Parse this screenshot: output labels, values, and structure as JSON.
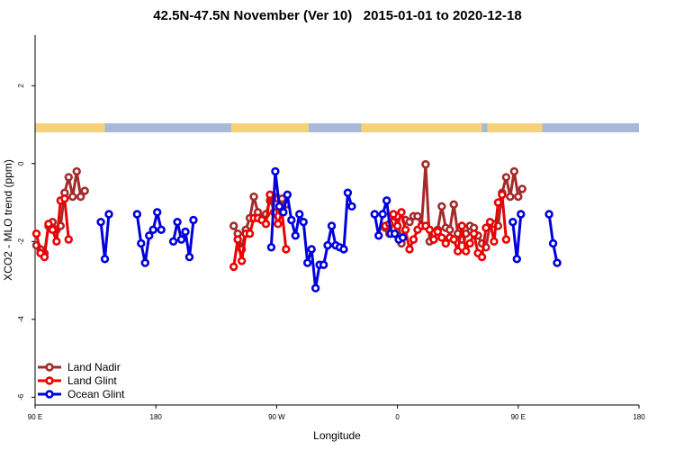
{
  "chart_data": {
    "type": "line",
    "title": "42.5N-47.5N November (Ver 10)   2015-01-01 to 2020-12-18",
    "xlabel": "Longitude",
    "ylabel": "XCO2 - MLO trend (ppm)",
    "xlim": [
      90,
      540
    ],
    "ylim": [
      -6.2,
      3.3
    ],
    "xticks": [
      {
        "value": 90,
        "label": "90 E"
      },
      {
        "value": 180,
        "label": "180"
      },
      {
        "value": 270,
        "label": "90 W"
      },
      {
        "value": 360,
        "label": "0"
      },
      {
        "value": 450,
        "label": "90 E"
      },
      {
        "value": 540,
        "label": "180"
      }
    ],
    "yticks": [
      2,
      0,
      -2,
      -4,
      -6
    ],
    "legend_position": "bottom-left",
    "land_mask_colors": {
      "land": "#f5d27a",
      "ocean": "#a6b9d8"
    },
    "series": [
      {
        "name": "Land Nadir",
        "color": "#a52a2a",
        "segments": [
          [
            [
              91,
              -2.1
            ],
            [
              94,
              -2.2
            ],
            [
              97,
              -2.3
            ],
            [
              100,
              -1.6
            ],
            [
              103,
              -1.5
            ],
            [
              106,
              -1.7
            ],
            [
              109,
              -1.6
            ],
            [
              112,
              -0.75
            ],
            [
              115,
              -0.35
            ],
            [
              118,
              -0.85
            ],
            [
              121,
              -0.2
            ],
            [
              124,
              -0.85
            ],
            [
              127,
              -0.7
            ]
          ],
          [
            [
              238,
              -1.6
            ],
            [
              241,
              -1.8
            ],
            [
              244,
              -2.2
            ],
            [
              247,
              -1.7
            ],
            [
              250,
              -1.4
            ],
            [
              253,
              -0.85
            ],
            [
              256,
              -1.25
            ],
            [
              259,
              -1.4
            ],
            [
              262,
              -1.3
            ],
            [
              265,
              -0.95
            ],
            [
              268,
              -0.85
            ],
            [
              271,
              -0.9
            ],
            [
              274,
              -0.9
            ],
            [
              277,
              -1.05
            ]
          ],
          [
            [
              351,
              -1.65
            ],
            [
              354,
              -1.8
            ],
            [
              357,
              -1.5
            ],
            [
              360,
              -1.35
            ],
            [
              363,
              -2.05
            ],
            [
              366,
              -1.45
            ],
            [
              369,
              -1.5
            ],
            [
              372,
              -1.35
            ],
            [
              375,
              -1.35
            ],
            [
              378,
              -1.6
            ],
            [
              381,
              -0.02
            ],
            [
              384,
              -2.0
            ],
            [
              387,
              -1.95
            ],
            [
              390,
              -1.7
            ],
            [
              393,
              -1.1
            ],
            [
              396,
              -1.65
            ],
            [
              399,
              -1.7
            ],
            [
              402,
              -1.05
            ],
            [
              405,
              -1.8
            ],
            [
              408,
              -1.95
            ],
            [
              411,
              -1.8
            ],
            [
              414,
              -1.6
            ],
            [
              417,
              -1.65
            ],
            [
              420,
              -1.85
            ],
            [
              423,
              -2.05
            ],
            [
              426,
              -2.15
            ],
            [
              429,
              -1.55
            ],
            [
              432,
              -1.55
            ],
            [
              435,
              -1.6
            ],
            [
              438,
              -0.75
            ],
            [
              441,
              -0.35
            ],
            [
              444,
              -0.85
            ],
            [
              447,
              -0.2
            ],
            [
              450,
              -0.85
            ],
            [
              453,
              -0.65
            ]
          ]
        ]
      },
      {
        "name": "Land Glint",
        "color": "#ee0000",
        "segments": [
          [
            [
              91,
              -1.8
            ],
            [
              94,
              -2.3
            ],
            [
              97,
              -2.4
            ],
            [
              100,
              -1.55
            ],
            [
              103,
              -1.7
            ],
            [
              106,
              -2.0
            ],
            [
              109,
              -0.95
            ],
            [
              112,
              -0.9
            ],
            [
              115,
              -1.95
            ]
          ],
          [
            [
              238,
              -2.65
            ],
            [
              241,
              -1.95
            ],
            [
              244,
              -2.5
            ],
            [
              247,
              -1.8
            ],
            [
              250,
              -1.8
            ],
            [
              253,
              -1.4
            ],
            [
              256,
              -1.4
            ],
            [
              259,
              -1.45
            ],
            [
              262,
              -1.55
            ],
            [
              265,
              -0.8
            ],
            [
              268,
              -1.25
            ],
            [
              271,
              -1.55
            ],
            [
              274,
              -1.25
            ],
            [
              277,
              -2.2
            ]
          ],
          [
            [
              351,
              -1.6
            ],
            [
              354,
              -1.55
            ],
            [
              357,
              -1.3
            ],
            [
              360,
              -1.6
            ],
            [
              363,
              -1.25
            ],
            [
              366,
              -1.7
            ],
            [
              369,
              -2.2
            ],
            [
              372,
              -1.95
            ],
            [
              375,
              -1.7
            ],
            [
              378,
              -1.6
            ],
            [
              381,
              -1.6
            ],
            [
              384,
              -1.7
            ],
            [
              387,
              -1.95
            ],
            [
              390,
              -1.75
            ],
            [
              393,
              -1.9
            ],
            [
              396,
              -2.05
            ],
            [
              399,
              -1.9
            ],
            [
              402,
              -1.95
            ],
            [
              405,
              -2.25
            ],
            [
              408,
              -1.6
            ],
            [
              411,
              -2.25
            ],
            [
              414,
              -2.05
            ],
            [
              417,
              -1.8
            ],
            [
              420,
              -2.3
            ],
            [
              423,
              -2.4
            ],
            [
              426,
              -1.65
            ],
            [
              429,
              -1.5
            ],
            [
              432,
              -2.0
            ],
            [
              435,
              -1.0
            ],
            [
              438,
              -0.8
            ],
            [
              441,
              -1.95
            ]
          ]
        ]
      },
      {
        "name": "Ocean Glint",
        "color": "#0000dd",
        "segments": [
          [
            [
              139,
              -1.5
            ],
            [
              142,
              -2.45
            ],
            [
              145,
              -1.3
            ]
          ],
          [
            [
              166,
              -1.3
            ],
            [
              169,
              -2.05
            ],
            [
              172,
              -2.55
            ],
            [
              175,
              -1.85
            ],
            [
              178,
              -1.7
            ],
            [
              181,
              -1.25
            ],
            [
              184,
              -1.7
            ]
          ],
          [
            [
              193,
              -2.0
            ],
            [
              196,
              -1.5
            ],
            [
              199,
              -1.95
            ],
            [
              202,
              -1.75
            ],
            [
              205,
              -2.4
            ],
            [
              208,
              -1.45
            ]
          ],
          [
            [
              266,
              -2.15
            ],
            [
              269,
              -0.2
            ],
            [
              272,
              -1.1
            ],
            [
              275,
              -1.25
            ],
            [
              278,
              -0.8
            ],
            [
              281,
              -1.45
            ],
            [
              284,
              -1.85
            ],
            [
              287,
              -1.3
            ],
            [
              290,
              -1.5
            ],
            [
              293,
              -2.55
            ],
            [
              296,
              -2.2
            ],
            [
              299,
              -3.2
            ],
            [
              302,
              -2.6
            ],
            [
              305,
              -2.6
            ],
            [
              308,
              -2.1
            ],
            [
              311,
              -1.6
            ],
            [
              314,
              -2.1
            ],
            [
              317,
              -2.15
            ],
            [
              320,
              -2.2
            ],
            [
              323,
              -0.75
            ],
            [
              326,
              -1.1
            ]
          ],
          [
            [
              343,
              -1.3
            ],
            [
              346,
              -1.85
            ],
            [
              349,
              -1.3
            ],
            [
              352,
              -0.95
            ],
            [
              355,
              -1.8
            ],
            [
              358,
              -1.8
            ],
            [
              361,
              -1.95
            ],
            [
              364,
              -1.9
            ]
          ],
          [
            [
              446,
              -1.5
            ],
            [
              449,
              -2.45
            ],
            [
              452,
              -1.3
            ]
          ],
          [
            [
              473,
              -1.3
            ],
            [
              476,
              -2.05
            ],
            [
              479,
              -2.55
            ]
          ]
        ]
      }
    ]
  }
}
